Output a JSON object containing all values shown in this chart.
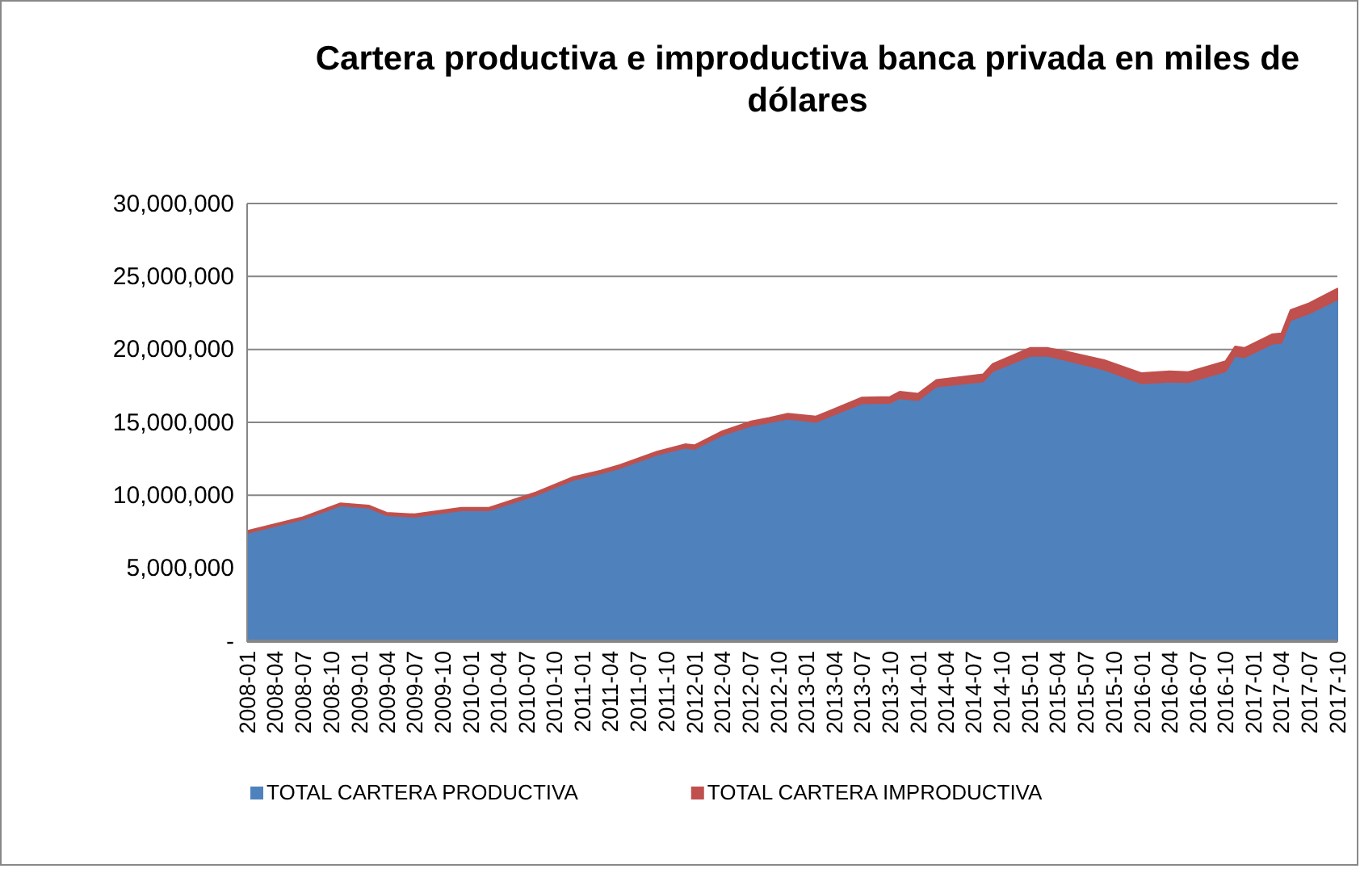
{
  "chart_data": {
    "type": "area",
    "title": "Cartera productiva e improductiva banca privada en miles de dólares",
    "stacked": true,
    "grid": "y",
    "legend": "bottom",
    "x": [
      "2008-01",
      "2008-07",
      "2008-11",
      "2009-02",
      "2009-04",
      "2009-07",
      "2009-12",
      "2010-03",
      "2010-08",
      "2010-12",
      "2011-03",
      "2011-05",
      "2011-09",
      "2011-12",
      "2012-01",
      "2012-04",
      "2012-07",
      "2012-09",
      "2012-11",
      "2013-02",
      "2013-07",
      "2013-10",
      "2013-11",
      "2014-01",
      "2014-03",
      "2014-08",
      "2014-09",
      "2015-01",
      "2015-03",
      "2015-05",
      "2015-09",
      "2016-01",
      "2016-04",
      "2016-06",
      "2016-10",
      "2016-11",
      "2016-12",
      "2017-03",
      "2017-04",
      "2017-05",
      "2017-07",
      "2017-10"
    ],
    "series": [
      {
        "name": "TOTAL CARTERA PRODUCTIVA",
        "color": "#4f81bd",
        "values": [
          7410000,
          8350000,
          9300000,
          9140000,
          8630000,
          8530000,
          8970000,
          8970000,
          10000000,
          11050000,
          11500000,
          11850000,
          12780000,
          13250000,
          13180000,
          14120000,
          14750000,
          15000000,
          15250000,
          15030000,
          16300000,
          16330000,
          16650000,
          16520000,
          17450000,
          17800000,
          18500000,
          19550000,
          19550000,
          19250000,
          18610000,
          17670000,
          17780000,
          17750000,
          18500000,
          19550000,
          19450000,
          20380000,
          20450000,
          22000000,
          22470000,
          23420000
        ]
      },
      {
        "name": "TOTAL CARTERA IMPRODUCTIVA",
        "color": "#c0504d",
        "values": [
          150000,
          150000,
          150000,
          160000,
          170000,
          170000,
          180000,
          180000,
          200000,
          200000,
          200000,
          220000,
          220000,
          250000,
          250000,
          280000,
          300000,
          300000,
          350000,
          370000,
          400000,
          420000,
          450000,
          450000,
          450000,
          500000,
          500000,
          550000,
          550000,
          600000,
          650000,
          700000,
          720000,
          700000,
          700000,
          650000,
          650000,
          650000,
          650000,
          700000,
          700000,
          750000
        ]
      }
    ],
    "ylim": [
      0,
      30000000
    ],
    "yticks": [
      {
        "value": 0,
        "label": "-"
      },
      {
        "value": 5000000,
        "label": "5,000,000"
      },
      {
        "value": 10000000,
        "label": "10,000,000"
      },
      {
        "value": 15000000,
        "label": "15,000,000"
      },
      {
        "value": 20000000,
        "label": "20,000,000"
      },
      {
        "value": 25000000,
        "label": "25,000,000"
      },
      {
        "value": 30000000,
        "label": "30,000,000"
      }
    ],
    "xlim": [
      "2008-01",
      "2017-10"
    ],
    "xticks": [
      "2008-01",
      "2008-04",
      "2008-07",
      "2008-10",
      "2009-01",
      "2009-04",
      "2009-07",
      "2009-10",
      "2010-01",
      "2010-04",
      "2010-07",
      "2010-10",
      "2011-01",
      "2011-04",
      "2011-07",
      "2011-10",
      "2012-01",
      "2012-04",
      "2012-07",
      "2012-10",
      "2013-01",
      "2013-04",
      "2013-07",
      "2013-10",
      "2014-01",
      "2014-04",
      "2014-07",
      "2014-10",
      "2015-01",
      "2015-04",
      "2015-07",
      "2015-10",
      "2016-01",
      "2016-04",
      "2016-07",
      "2016-10",
      "2017-01",
      "2017-04",
      "2017-07",
      "2017-10"
    ]
  }
}
